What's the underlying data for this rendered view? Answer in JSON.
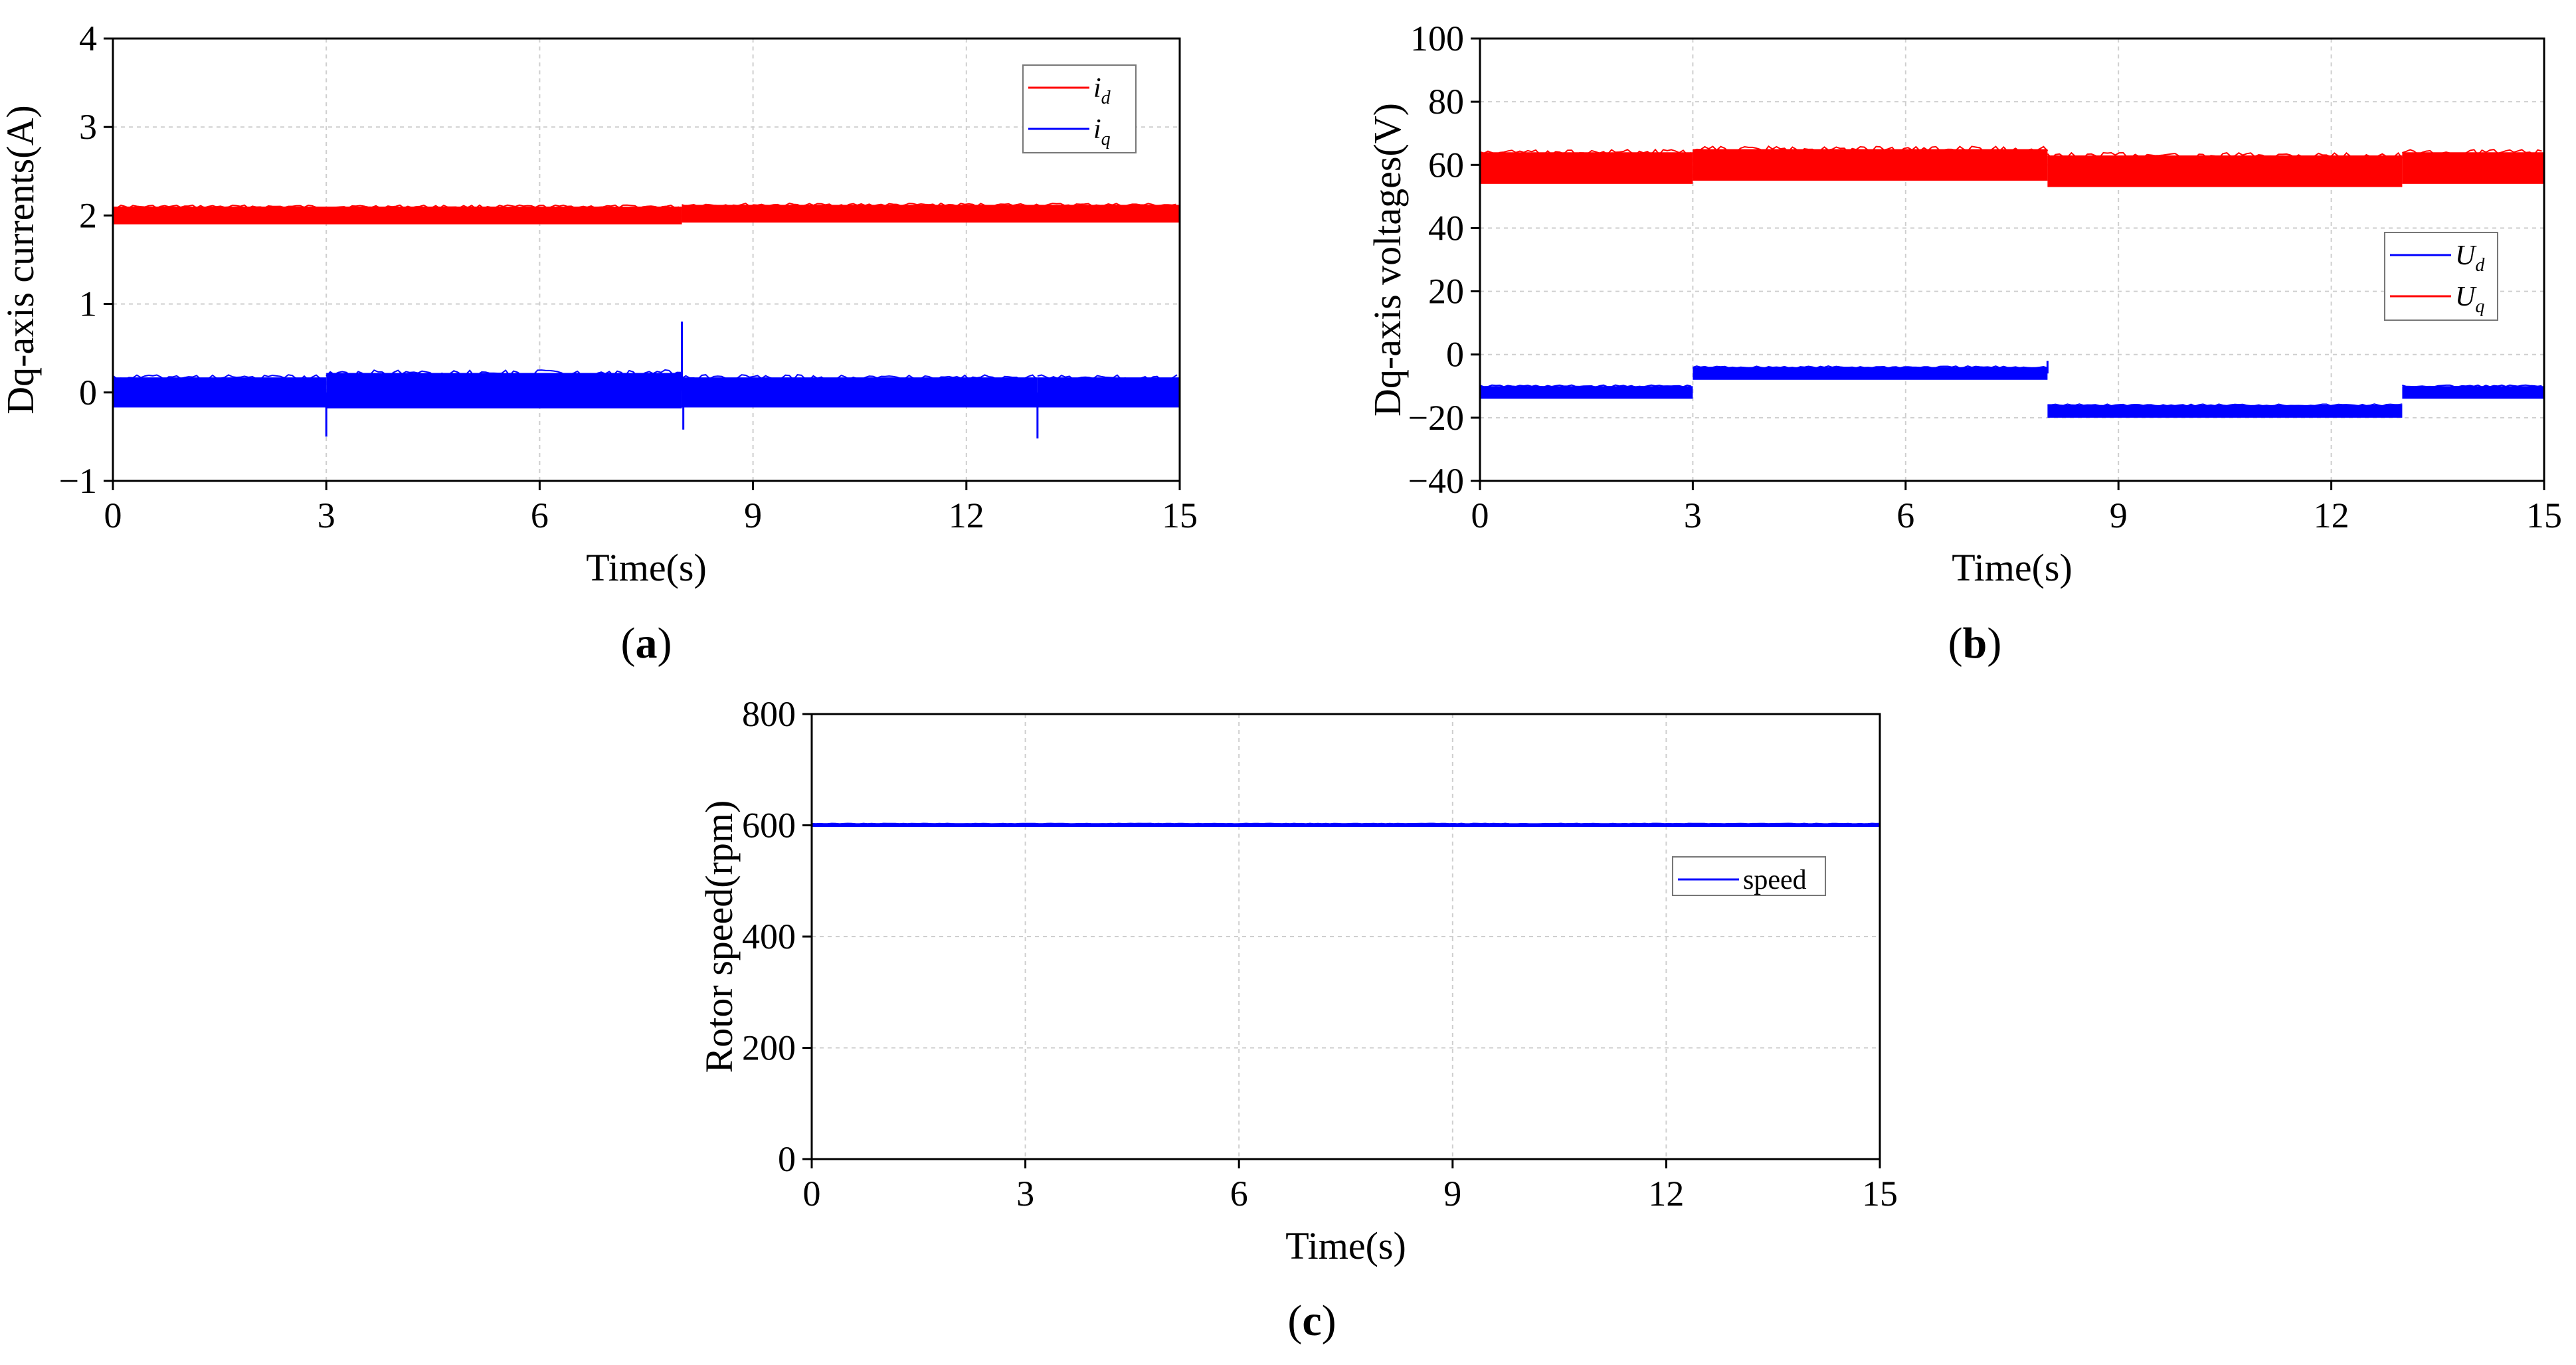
{
  "chart_data": [
    {
      "id": "a",
      "type": "line",
      "panel_label": "a",
      "xlabel": "Time(s)",
      "ylabel": "Dq-axis currents(A)",
      "xlim": [
        0,
        15
      ],
      "ylim": [
        -1,
        4
      ],
      "xticks": [
        0,
        3,
        6,
        9,
        12,
        15
      ],
      "yticks": [
        -1,
        0,
        1,
        2,
        3,
        4
      ],
      "grid": true,
      "legend_position": "top-right",
      "series": [
        {
          "name": "id",
          "label_main": "i",
          "label_sub": "d",
          "color": "#ff0000",
          "segments": [
            {
              "x0": 0,
              "x1": 8,
              "mean": 2.0,
              "ripple": 0.1
            },
            {
              "x0": 8,
              "x1": 15,
              "mean": 2.02,
              "ripple": 0.1
            }
          ],
          "spikes": []
        },
        {
          "name": "iq",
          "label_main": "i",
          "label_sub": "q",
          "color": "#0000ff",
          "segments": [
            {
              "x0": 0,
              "x1": 3,
              "mean": 0.0,
              "ripple": 0.17
            },
            {
              "x0": 3,
              "x1": 8,
              "mean": 0.02,
              "ripple": 0.2
            },
            {
              "x0": 8,
              "x1": 13,
              "mean": 0.0,
              "ripple": 0.17
            },
            {
              "x0": 13,
              "x1": 15,
              "mean": 0.0,
              "ripple": 0.17
            }
          ],
          "spikes": [
            {
              "x": 3,
              "y": -0.5
            },
            {
              "x": 8,
              "y": 0.8
            },
            {
              "x": 8.02,
              "y": -0.42
            },
            {
              "x": 13,
              "y": -0.52
            }
          ]
        }
      ]
    },
    {
      "id": "b",
      "type": "line",
      "panel_label": "b",
      "xlabel": "Time(s)",
      "ylabel": "Dq-axis voltages(V)",
      "xlim": [
        0,
        15
      ],
      "ylim": [
        -40,
        100
      ],
      "xticks": [
        0,
        3,
        6,
        9,
        12,
        15
      ],
      "yticks": [
        -40,
        -20,
        0,
        20,
        40,
        60,
        80,
        100
      ],
      "grid": true,
      "legend_position": "center-right",
      "series": [
        {
          "name": "Ud",
          "label_main": "U",
          "label_sub": "d",
          "color": "#0000ff",
          "segments": [
            {
              "x0": 0,
              "x1": 3,
              "mean": -12,
              "ripple": 2
            },
            {
              "x0": 3,
              "x1": 8,
              "mean": -6,
              "ripple": 2
            },
            {
              "x0": 8,
              "x1": 13,
              "mean": -18,
              "ripple": 2
            },
            {
              "x0": 13,
              "x1": 15,
              "mean": -12,
              "ripple": 2
            }
          ],
          "spikes": [
            {
              "x": 8,
              "y": -2
            }
          ]
        },
        {
          "name": "Uq",
          "label_main": "U",
          "label_sub": "q",
          "color": "#ff0000",
          "segments": [
            {
              "x0": 0,
              "x1": 3,
              "mean": 59,
              "ripple": 5
            },
            {
              "x0": 3,
              "x1": 8,
              "mean": 60,
              "ripple": 5
            },
            {
              "x0": 8,
              "x1": 13,
              "mean": 58,
              "ripple": 5
            },
            {
              "x0": 13,
              "x1": 15,
              "mean": 59,
              "ripple": 5
            }
          ],
          "spikes": []
        }
      ]
    },
    {
      "id": "c",
      "type": "line",
      "panel_label": "c",
      "xlabel": "Time(s)",
      "ylabel": "Rotor speed(rpm)",
      "xlim": [
        0,
        15
      ],
      "ylim": [
        0,
        800
      ],
      "xticks": [
        0,
        3,
        6,
        9,
        12,
        15
      ],
      "yticks": [
        0,
        200,
        400,
        600,
        800
      ],
      "grid": true,
      "legend_position": "center-right",
      "series": [
        {
          "name": "speed",
          "label_main": "speed",
          "label_sub": "",
          "color": "#0000ff",
          "segments": [
            {
              "x0": 0,
              "x1": 15,
              "mean": 600,
              "ripple": 3
            }
          ],
          "spikes": []
        }
      ]
    }
  ]
}
